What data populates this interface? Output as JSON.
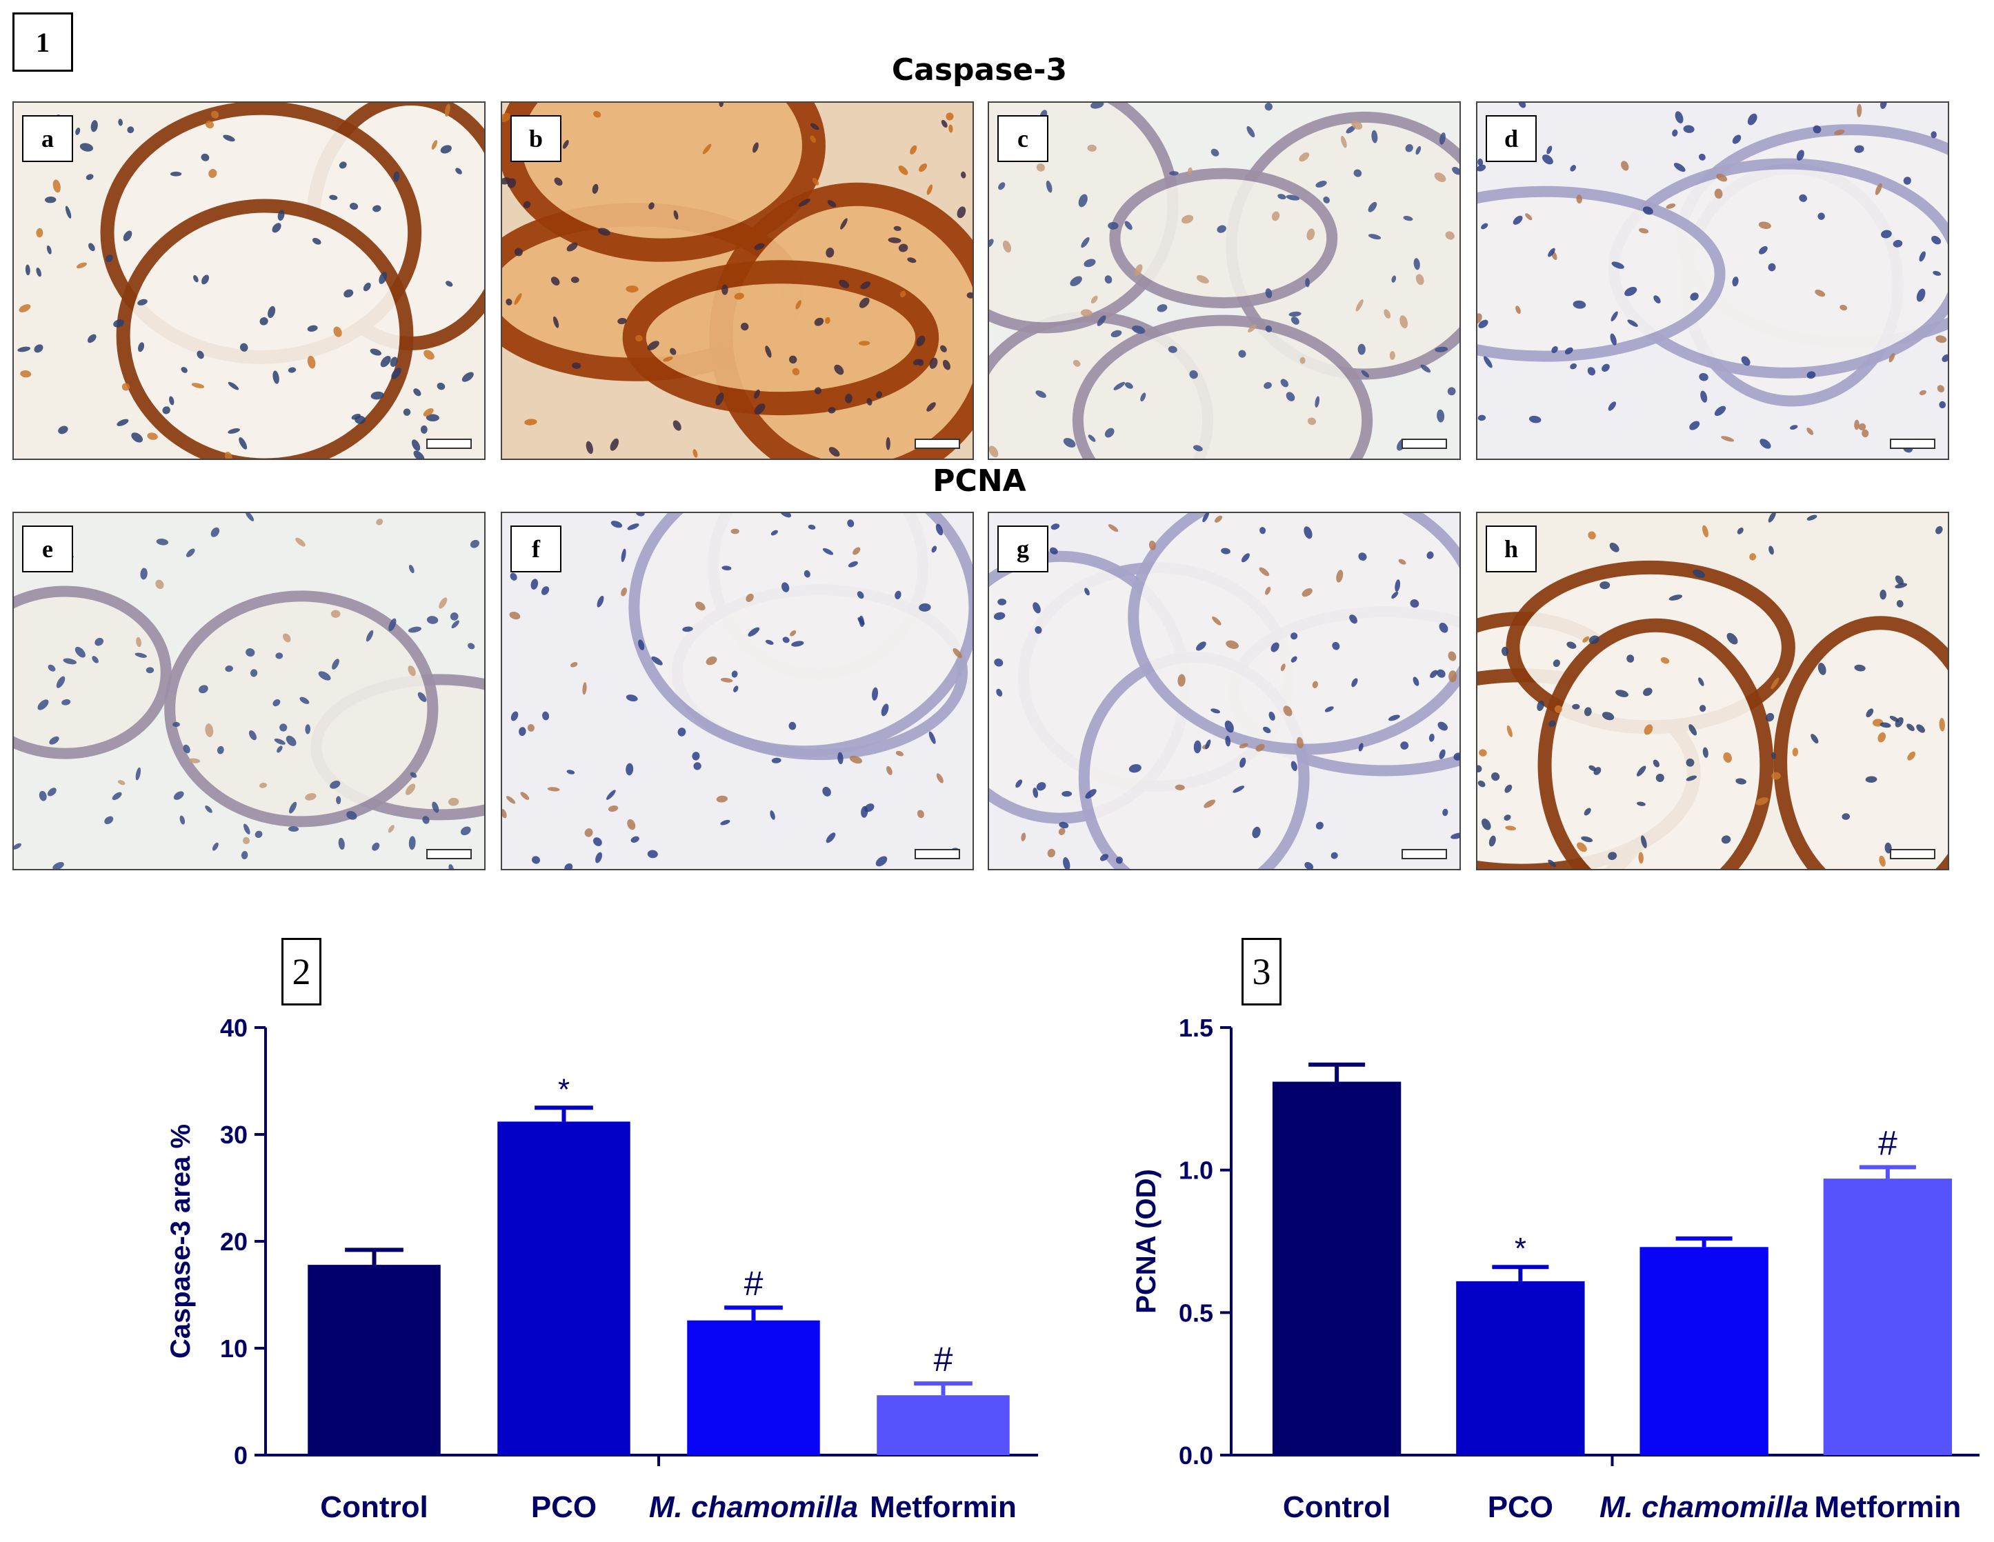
{
  "figure_label": "1",
  "section_titles": {
    "top": "Caspase-3",
    "bottom": "PCNA"
  },
  "panels": [
    {
      "letter": "a",
      "stain": "brown"
    },
    {
      "letter": "b",
      "stain": "brown-heavy"
    },
    {
      "letter": "c",
      "stain": "light"
    },
    {
      "letter": "d",
      "stain": "blue-nuclei"
    },
    {
      "letter": "e",
      "stain": "light"
    },
    {
      "letter": "f",
      "stain": "blue-nuclei"
    },
    {
      "letter": "g",
      "stain": "blue-nuclei"
    },
    {
      "letter": "h",
      "stain": "brown"
    }
  ],
  "colors": {
    "series": [
      "#02006a",
      "#0300c8",
      "#0805f7",
      "#5652fc"
    ],
    "axis": "#000066"
  },
  "chart_data": [
    {
      "panel_label": "2",
      "type": "bar",
      "categories": [
        "Control",
        "PCO",
        "M. chamomilla",
        "Metformin"
      ],
      "category_italic": [
        false,
        false,
        true,
        false
      ],
      "values": [
        17.8,
        31.2,
        12.6,
        5.6
      ],
      "errors": [
        1.4,
        1.3,
        1.2,
        1.1
      ],
      "annotations": [
        "",
        "*",
        "#",
        "#"
      ],
      "ylabel": "Caspase-3 area %",
      "ylim": [
        0,
        40
      ],
      "yticks": [
        "0",
        "10",
        "20",
        "30",
        "40"
      ],
      "ytick_values": [
        0,
        10,
        20,
        30,
        40
      ]
    },
    {
      "panel_label": "3",
      "type": "bar",
      "categories": [
        "Control",
        "PCO",
        "M. chamomilla",
        "Metformin"
      ],
      "category_italic": [
        false,
        false,
        true,
        false
      ],
      "values": [
        1.31,
        0.61,
        0.73,
        0.97
      ],
      "errors": [
        0.06,
        0.05,
        0.03,
        0.04
      ],
      "annotations": [
        "",
        "*",
        "",
        "#"
      ],
      "ylabel": "PCNA (OD)",
      "ylim": [
        0,
        1.5
      ],
      "yticks": [
        "0.0",
        "0.5",
        "1.0",
        "1.5"
      ],
      "ytick_values": [
        0,
        0.5,
        1.0,
        1.5
      ]
    }
  ]
}
